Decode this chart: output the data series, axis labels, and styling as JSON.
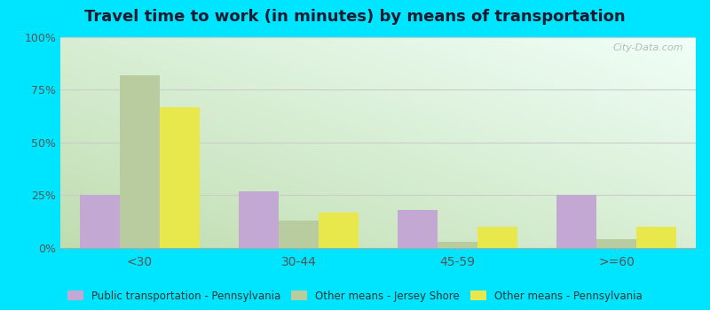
{
  "title": "Travel time to work (in minutes) by means of transportation",
  "categories": [
    "<30",
    "30-44",
    "45-59",
    ">=60"
  ],
  "series": {
    "Public transportation - Pennsylvania": [
      25,
      27,
      18,
      25
    ],
    "Other means - Jersey Shore": [
      82,
      13,
      3,
      4
    ],
    "Other means - Pennsylvania": [
      67,
      17,
      10,
      10
    ]
  },
  "colors": {
    "Public transportation - Pennsylvania": "#c4a8d4",
    "Other means - Jersey Shore": "#b8cca0",
    "Other means - Pennsylvania": "#e8e84c"
  },
  "ylim": [
    0,
    100
  ],
  "yticks": [
    0,
    25,
    50,
    75,
    100
  ],
  "ytick_labels": [
    "0%",
    "25%",
    "50%",
    "75%",
    "100%"
  ],
  "outer_background": "#00e5ff",
  "title_fontsize": 13,
  "title_color": "#1a1a2e",
  "watermark": "City-Data.com",
  "tick_color": "#888888",
  "axis_label_color": "#555555"
}
